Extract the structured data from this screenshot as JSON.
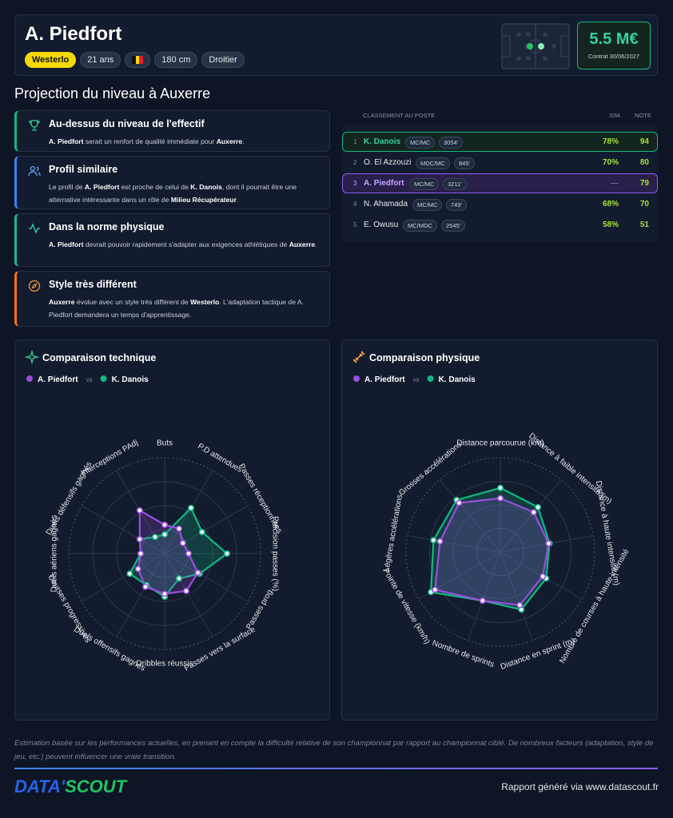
{
  "header": {
    "name": "A. Piedfort",
    "club": "Westerlo",
    "age": "21 ans",
    "height": "180 cm",
    "foot": "Droitier",
    "value": "5.5 M€",
    "contract": "Contrat 30/06/2027"
  },
  "section_title": "Projection du niveau à Auxerre",
  "cards": [
    {
      "title": "Au-dessus du niveau de l'effectif",
      "accent": "#10b981",
      "parts": [
        {
          "text": "A. Piedfort",
          "bold": true
        },
        {
          "text": " serait un renfort de qualité immédiate pour ",
          "bold": false
        },
        {
          "text": "Auxerre",
          "bold": true
        },
        {
          "text": ".",
          "bold": false
        }
      ]
    },
    {
      "title": "Profil similaire",
      "accent": "#3b82f6",
      "parts": [
        {
          "text": "Le profil de ",
          "bold": false
        },
        {
          "text": "A. Piedfort",
          "bold": true
        },
        {
          "text": " est proche de celui de ",
          "bold": false
        },
        {
          "text": "K. Danois",
          "bold": true
        },
        {
          "text": ", dont il pourrait être une alternative intéressante dans un rôle de ",
          "bold": false
        },
        {
          "text": "Milieu Récupérateur",
          "bold": true
        },
        {
          "text": ".",
          "bold": false
        }
      ]
    },
    {
      "title": "Dans la norme physique",
      "accent": "#14b8a6",
      "parts": [
        {
          "text": "A. Piedfort",
          "bold": true
        },
        {
          "text": " devrait pouvoir rapidement s'adapter aux exigences athlétiques de ",
          "bold": false
        },
        {
          "text": "Auxerre",
          "bold": true
        },
        {
          "text": ".",
          "bold": false
        }
      ]
    },
    {
      "title": "Style très différent",
      "accent": "#f97316",
      "parts": [
        {
          "text": "Auxerre",
          "bold": true
        },
        {
          "text": " évolue avec un style très différent de ",
          "bold": false
        },
        {
          "text": "Westerlo",
          "bold": true
        },
        {
          "text": ". L'adaptation tactique de A. Piedfort demandera un temps d'apprentissage.",
          "bold": false
        }
      ]
    }
  ],
  "ranking": {
    "title": "CLASSEMENT AU POSTE",
    "sim": "SIM.",
    "note": "NOTE",
    "rows": [
      {
        "rank": 1,
        "name": "K. Danois",
        "position": "MC/MC",
        "minutes": "3054'",
        "sim": "78%",
        "note": 94
      },
      {
        "rank": 2,
        "name": "O. El Azzouzi",
        "position": "MDC/MC",
        "minutes": "845'",
        "sim": "70%",
        "note": 80
      },
      {
        "rank": 3,
        "name": "A. Piedfort",
        "position": "MC/MC",
        "minutes": "3211'",
        "sim": "—",
        "note": 79
      },
      {
        "rank": 4,
        "name": "N. Ahamada",
        "position": "MC/MC",
        "minutes": "749'",
        "sim": "68%",
        "note": 70
      },
      {
        "rank": 5,
        "name": "E. Owusu",
        "position": "MC/MDC",
        "minutes": "2545'",
        "sim": "58%",
        "note": 51
      }
    ]
  },
  "technical": {
    "title": "Comparaison technique",
    "vs": "vs",
    "rlim": [
      0,
      100
    ],
    "axes": [
      "Buts",
      "P.D attendues",
      "Passes réceptionnées",
      "Précision passes (%)",
      "Passes prog.",
      "Passes vers la surface",
      "Dribbles réussis",
      "Duels offensifs gagnés",
      "Courses progressives",
      "Duels aériens gagnés",
      "Duels défensifs gagnés",
      "Interceptions PAdj"
    ],
    "series": [
      {
        "name": "A. Piedfort",
        "color": "#9b4de0",
        "values": [
          30,
          30,
          22,
          25,
          40,
          45,
          42,
          40,
          32,
          25,
          30,
          52
        ]
      },
      {
        "name": "K. Danois",
        "color": "#10b981",
        "values": [
          20,
          55,
          45,
          65,
          42,
          30,
          45,
          38,
          42,
          25,
          30,
          20
        ]
      }
    ]
  },
  "physical": {
    "title": "Comparaison physique",
    "vs": "vs",
    "rlim": [
      0,
      100
    ],
    "axes": [
      "Distance parcourue (km)",
      "Distance à faible intensité (m)",
      "Distance à haute intensité (m)",
      "Nombre de courses à haute intensité",
      "Distance en sprint (m)",
      "Nombre de sprints",
      "Pointe de vitesse (km/h)",
      "Légères accélérations",
      "Grosses accélérations"
    ],
    "series": [
      {
        "name": "A. Piedfort",
        "color": "#9b4de0",
        "values": [
          57,
          55,
          52,
          52,
          60,
          55,
          80,
          65,
          68
        ]
      },
      {
        "name": "K. Danois",
        "color": "#10b981",
        "values": [
          68,
          62,
          53,
          56,
          65,
          55,
          85,
          72,
          72
        ]
      }
    ]
  },
  "footer": {
    "note": "Estimation basée sur les performances actuelles, en prenant en compte la difficulté relative de son championnat par rapport au championnat ciblé. De nombreux facteurs (adaptation, style de jeu, etc.) peuvent influencer une vraie transition.",
    "logo_a": "DATA'",
    "logo_b": "SCOUT",
    "credit": "Rapport généré via www.datascout.fr"
  }
}
